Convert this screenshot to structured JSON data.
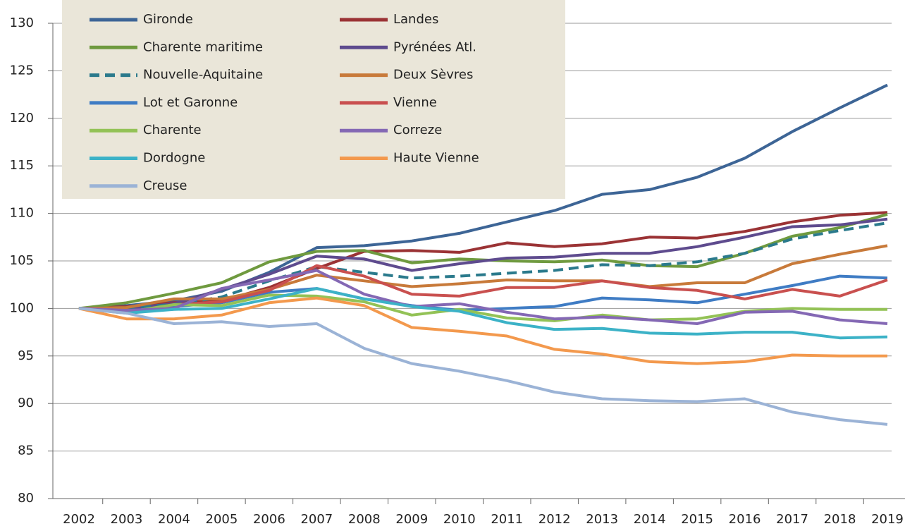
{
  "chart_data": {
    "type": "line",
    "categories": [
      "2002",
      "2003",
      "2004",
      "2005",
      "2006",
      "2007",
      "2008",
      "2009",
      "2010",
      "2011",
      "2012",
      "2013",
      "2014",
      "2015",
      "2016",
      "2017",
      "2018",
      "2019"
    ],
    "ylim": [
      80,
      130
    ],
    "yticks": [
      80,
      85,
      90,
      95,
      100,
      105,
      110,
      115,
      120,
      125,
      130
    ],
    "grid": true,
    "legend": "top-left",
    "series": [
      {
        "name": "Gironde",
        "color": "#3d6596",
        "values": [
          100,
          100.3,
          100.8,
          101.8,
          103.8,
          106.4,
          106.6,
          107.1,
          107.9,
          109.1,
          110.3,
          112.0,
          112.5,
          113.8,
          115.8,
          118.6,
          121.1,
          123.5
        ]
      },
      {
        "name": "Landes",
        "color": "#9b3335",
        "values": [
          100,
          100.2,
          100.6,
          100.8,
          102.2,
          104.2,
          106.0,
          106.1,
          105.9,
          106.9,
          106.5,
          106.8,
          107.5,
          107.4,
          108.1,
          109.1,
          109.8,
          110.1
        ]
      },
      {
        "name": "Charente maritime",
        "color": "#6f9a3f",
        "values": [
          100,
          100.6,
          101.6,
          102.7,
          104.9,
          106.0,
          106.1,
          104.8,
          105.2,
          105.0,
          104.9,
          105.1,
          104.5,
          104.4,
          105.8,
          107.6,
          108.5,
          109.9
        ]
      },
      {
        "name": "Pyrénées Atl.",
        "color": "#5e4b8e",
        "values": [
          100,
          100.0,
          100.5,
          102.0,
          103.6,
          105.5,
          105.2,
          104.0,
          104.7,
          105.3,
          105.4,
          105.8,
          105.8,
          106.5,
          107.5,
          108.6,
          108.8,
          109.4
        ]
      },
      {
        "name": "Nouvelle-Aquitaine",
        "color": "#2b7a8c",
        "dashed": true,
        "values": [
          100,
          100.1,
          100.4,
          101.2,
          102.9,
          104.4,
          103.8,
          103.2,
          103.4,
          103.7,
          104.0,
          104.6,
          104.5,
          104.9,
          105.8,
          107.3,
          108.2,
          109.0
        ]
      },
      {
        "name": "Deux Sèvres",
        "color": "#c87a3a",
        "values": [
          100,
          100.1,
          101.0,
          101.0,
          102.0,
          103.5,
          102.9,
          102.3,
          102.6,
          103.0,
          102.9,
          102.9,
          102.3,
          102.7,
          102.7,
          104.7,
          105.7,
          106.6
        ]
      },
      {
        "name": "Lot et Garonne",
        "color": "#3f7cc4",
        "values": [
          100,
          99.6,
          100.2,
          100.6,
          101.7,
          102.1,
          101.0,
          100.3,
          99.8,
          100.0,
          100.2,
          101.1,
          100.9,
          100.6,
          101.5,
          102.4,
          103.4,
          103.2
        ]
      },
      {
        "name": "Vienne",
        "color": "#c9504f",
        "values": [
          100,
          99.6,
          100.4,
          100.7,
          101.9,
          104.5,
          103.4,
          101.5,
          101.3,
          102.2,
          102.2,
          102.9,
          102.2,
          101.9,
          101.0,
          102.0,
          101.3,
          103.0
        ]
      },
      {
        "name": "Charente",
        "color": "#93c256",
        "values": [
          100,
          99.6,
          100.4,
          100.3,
          101.4,
          101.3,
          100.7,
          99.3,
          99.9,
          99.0,
          98.7,
          99.3,
          98.8,
          98.9,
          99.7,
          100.0,
          99.9,
          99.9
        ]
      },
      {
        "name": "Correze",
        "color": "#8468b4",
        "values": [
          100,
          99.8,
          100.0,
          102.1,
          103.0,
          104.0,
          101.5,
          100.2,
          100.5,
          99.6,
          98.9,
          99.1,
          98.8,
          98.4,
          99.6,
          99.7,
          98.8,
          98.4
        ]
      },
      {
        "name": "Dordogne",
        "color": "#3cb2c7",
        "values": [
          100,
          99.5,
          99.9,
          100.0,
          101.0,
          102.1,
          101.0,
          100.2,
          99.7,
          98.5,
          97.8,
          97.9,
          97.4,
          97.3,
          97.5,
          97.5,
          96.9,
          97.0
        ]
      },
      {
        "name": "Haute Vienne",
        "color": "#f3994d",
        "values": [
          100,
          98.9,
          98.9,
          99.3,
          100.6,
          101.1,
          100.3,
          98.0,
          97.6,
          97.1,
          95.7,
          95.2,
          94.4,
          94.2,
          94.4,
          95.1,
          95.0,
          95.0
        ]
      },
      {
        "name": "Creuse",
        "color": "#9bb3d6",
        "values": [
          100,
          99.5,
          98.4,
          98.6,
          98.1,
          98.4,
          95.8,
          94.2,
          93.4,
          92.4,
          91.2,
          90.5,
          90.3,
          90.2,
          90.5,
          89.1,
          88.3,
          87.8
        ]
      }
    ]
  }
}
